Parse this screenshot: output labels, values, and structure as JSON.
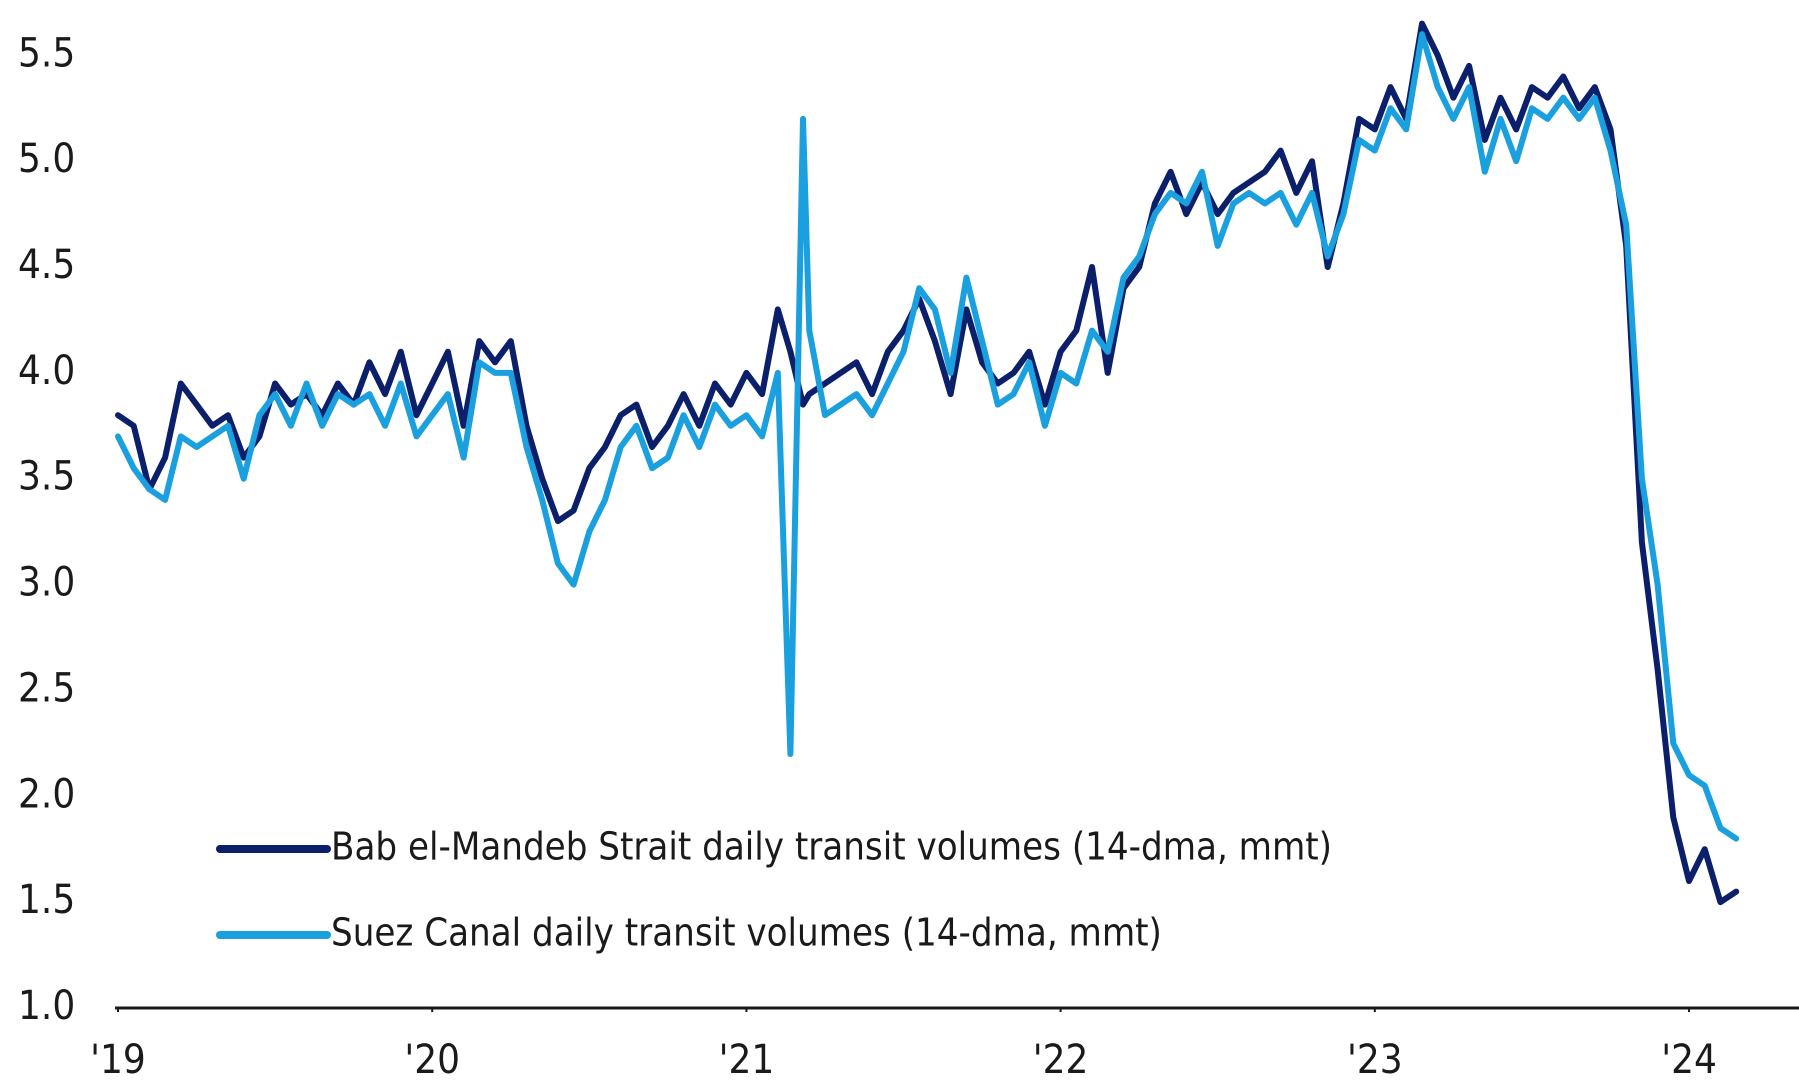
{
  "chart_data": {
    "type": "line",
    "x": [
      2019.0,
      2019.05,
      2019.1,
      2019.15,
      2019.2,
      2019.25,
      2019.3,
      2019.35,
      2019.4,
      2019.45,
      2019.5,
      2019.55,
      2019.6,
      2019.65,
      2019.7,
      2019.75,
      2019.8,
      2019.85,
      2019.9,
      2019.95,
      2020.0,
      2020.05,
      2020.1,
      2020.15,
      2020.2,
      2020.25,
      2020.3,
      2020.35,
      2020.4,
      2020.45,
      2020.5,
      2020.55,
      2020.6,
      2020.65,
      2020.7,
      2020.75,
      2020.8,
      2020.85,
      2020.9,
      2020.95,
      2021.0,
      2021.05,
      2021.1,
      2021.14,
      2021.18,
      2021.2,
      2021.25,
      2021.3,
      2021.35,
      2021.4,
      2021.45,
      2021.5,
      2021.55,
      2021.6,
      2021.65,
      2021.7,
      2021.75,
      2021.8,
      2021.85,
      2021.9,
      2021.95,
      2022.0,
      2022.05,
      2022.1,
      2022.15,
      2022.2,
      2022.25,
      2022.3,
      2022.35,
      2022.4,
      2022.45,
      2022.5,
      2022.55,
      2022.6,
      2022.65,
      2022.7,
      2022.75,
      2022.8,
      2022.85,
      2022.9,
      2022.95,
      2023.0,
      2023.05,
      2023.1,
      2023.15,
      2023.2,
      2023.25,
      2023.3,
      2023.35,
      2023.4,
      2023.45,
      2023.5,
      2023.55,
      2023.6,
      2023.65,
      2023.7,
      2023.75,
      2023.8,
      2023.85,
      2023.9,
      2023.95,
      2024.0,
      2024.05,
      2024.1,
      2024.15
    ],
    "series": [
      {
        "name": "Bab el-Mandeb Strait daily transit volumes (14-dma, mmt)",
        "color": "#0c1f6b",
        "values": [
          3.8,
          3.75,
          3.45,
          3.6,
          3.95,
          3.85,
          3.75,
          3.8,
          3.6,
          3.7,
          3.95,
          3.85,
          3.9,
          3.8,
          3.95,
          3.85,
          4.05,
          3.9,
          4.1,
          3.8,
          3.95,
          4.1,
          3.75,
          4.15,
          4.05,
          4.15,
          3.75,
          3.5,
          3.3,
          3.35,
          3.55,
          3.65,
          3.8,
          3.85,
          3.65,
          3.75,
          3.9,
          3.75,
          3.95,
          3.85,
          4.0,
          3.9,
          4.3,
          4.1,
          3.85,
          3.9,
          3.95,
          4.0,
          4.05,
          3.9,
          4.1,
          4.2,
          4.35,
          4.15,
          3.9,
          4.3,
          4.05,
          3.95,
          4.0,
          4.1,
          3.85,
          4.1,
          4.2,
          4.5,
          4.0,
          4.4,
          4.5,
          4.8,
          4.95,
          4.75,
          4.9,
          4.75,
          4.85,
          4.9,
          4.95,
          5.05,
          4.85,
          5.0,
          4.5,
          4.8,
          5.2,
          5.15,
          5.35,
          5.2,
          5.65,
          5.5,
          5.3,
          5.45,
          5.1,
          5.3,
          5.15,
          5.35,
          5.3,
          5.4,
          5.25,
          5.35,
          5.15,
          4.6,
          3.2,
          2.6,
          1.9,
          1.6,
          1.75,
          1.5,
          1.55
        ]
      },
      {
        "name": "Suez Canal daily transit volumes (14-dma, mmt)",
        "color": "#1aa0de",
        "values": [
          3.7,
          3.55,
          3.45,
          3.4,
          3.7,
          3.65,
          3.7,
          3.75,
          3.5,
          3.8,
          3.9,
          3.75,
          3.95,
          3.75,
          3.9,
          3.85,
          3.9,
          3.75,
          3.95,
          3.7,
          3.8,
          3.9,
          3.6,
          4.05,
          4.0,
          4.0,
          3.65,
          3.4,
          3.1,
          3.0,
          3.25,
          3.4,
          3.65,
          3.75,
          3.55,
          3.6,
          3.8,
          3.65,
          3.85,
          3.75,
          3.8,
          3.7,
          4.0,
          2.2,
          5.2,
          4.2,
          3.8,
          3.85,
          3.9,
          3.8,
          3.95,
          4.1,
          4.4,
          4.3,
          4.0,
          4.45,
          4.15,
          3.85,
          3.9,
          4.05,
          3.75,
          4.0,
          3.95,
          4.2,
          4.1,
          4.45,
          4.55,
          4.75,
          4.85,
          4.8,
          4.95,
          4.6,
          4.8,
          4.85,
          4.8,
          4.85,
          4.7,
          4.85,
          4.55,
          4.75,
          5.1,
          5.05,
          5.25,
          5.15,
          5.6,
          5.35,
          5.2,
          5.35,
          4.95,
          5.2,
          5.0,
          5.25,
          5.2,
          5.3,
          5.2,
          5.3,
          5.05,
          4.7,
          3.5,
          3.0,
          2.25,
          2.1,
          2.05,
          1.85,
          1.8
        ]
      }
    ],
    "xlim": [
      2019,
      2024.35
    ],
    "xticks": [
      {
        "value": 2019,
        "label": "'19"
      },
      {
        "value": 2020,
        "label": "'20"
      },
      {
        "value": 2021,
        "label": "'21"
      },
      {
        "value": 2022,
        "label": "'22"
      },
      {
        "value": 2023,
        "label": "'23"
      },
      {
        "value": 2024,
        "label": "'24"
      }
    ],
    "ylim": [
      1,
      5.7
    ],
    "yticks": [
      {
        "value": 1,
        "label": "1.0"
      },
      1.5,
      {
        "value": 2,
        "label": "2.0"
      },
      2.5,
      {
        "value": 3,
        "label": "3.0"
      },
      3.5,
      {
        "value": 4,
        "label": "4.0"
      },
      4.5,
      {
        "value": 5,
        "label": "5.0"
      },
      5.5
    ],
    "grid": false,
    "legend": "lower left"
  }
}
